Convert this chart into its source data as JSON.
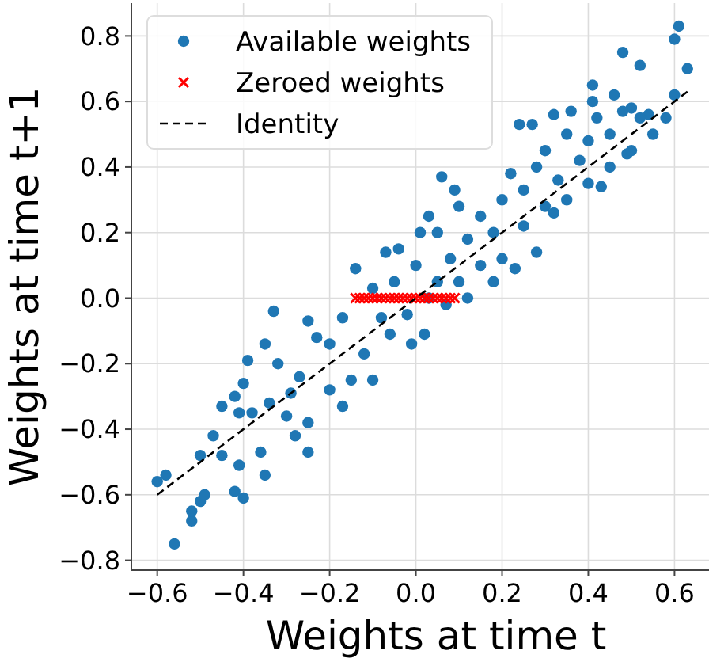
{
  "chart_data": {
    "type": "scatter",
    "xlabel": "Weights at time t",
    "ylabel": "Weights at time t+1",
    "xlim": [
      -0.66,
      0.68
    ],
    "ylim": [
      -0.83,
      0.9
    ],
    "xticks": [
      {
        "value": -0.6,
        "label": "−0.6"
      },
      {
        "value": -0.4,
        "label": "−0.4"
      },
      {
        "value": -0.2,
        "label": "−0.2"
      },
      {
        "value": 0,
        "label": "0.0"
      },
      {
        "value": 0.2,
        "label": "0.2"
      },
      {
        "value": 0.4,
        "label": "0.4"
      },
      {
        "value": 0.6,
        "label": "0.6"
      }
    ],
    "yticks": [
      {
        "value": -0.8,
        "label": "−0.8"
      },
      {
        "value": -0.6,
        "label": "−0.6"
      },
      {
        "value": -0.4,
        "label": "−0.4"
      },
      {
        "value": -0.2,
        "label": "−0.2"
      },
      {
        "value": 0,
        "label": "0.0"
      },
      {
        "value": 0.2,
        "label": "0.2"
      },
      {
        "value": 0.4,
        "label": "0.4"
      },
      {
        "value": 0.6,
        "label": "0.6"
      },
      {
        "value": 0.8,
        "label": "0.8"
      }
    ],
    "grid": true,
    "legend": "top left",
    "series": [
      {
        "name": "Available weights",
        "marker": "circle",
        "color": "#1f77b4",
        "x": [
          0.61,
          0.6,
          0.63,
          0.48,
          0.52,
          0.6,
          0.41,
          0.41,
          0.46,
          0.5,
          0.54,
          0.32,
          0.36,
          0.24,
          0.27,
          0.43,
          0.49,
          0.32,
          0.23,
          0.06,
          0.09,
          0.01,
          0.03,
          -0.07,
          -0.14,
          -0.04,
          -0.33,
          -0.6,
          -0.58,
          -0.56,
          -0.52,
          -0.52,
          -0.5,
          -0.49,
          -0.47,
          -0.5,
          -0.45,
          -0.42,
          -0.4,
          -0.41,
          -0.45,
          -0.42,
          -0.4,
          -0.39,
          -0.41,
          -0.35,
          -0.36,
          -0.35,
          -0.28,
          -0.25,
          -0.25,
          -0.27,
          -0.25,
          -0.32,
          -0.17,
          -0.23,
          -0.2,
          -0.15,
          -0.1,
          -0.12,
          -0.06,
          -0.01,
          0.02,
          -0.08,
          -0.17,
          -0.2,
          -0.3,
          -0.34,
          -0.38,
          -0.29,
          0.05,
          0.08,
          0.1,
          0.12,
          0.15,
          0.15,
          0.18,
          0.2,
          0.2,
          0.22,
          0.25,
          0.25,
          0.28,
          0.3,
          0.3,
          0.33,
          0.35,
          0.38,
          0.4,
          0.4,
          0.42,
          0.45,
          0.48,
          0.5,
          0.52,
          0.55,
          0.58,
          0.1,
          0.05,
          0.0,
          -0.05,
          -0.1,
          0.07,
          0.12,
          0.18,
          0.28,
          0.35,
          0.45,
          0.03,
          -0.02
        ],
        "values": [
          0.83,
          0.79,
          0.7,
          0.75,
          0.71,
          0.62,
          0.65,
          0.6,
          0.62,
          0.58,
          0.56,
          0.56,
          0.57,
          0.53,
          0.53,
          0.34,
          0.44,
          0.26,
          0.09,
          0.37,
          0.33,
          0.2,
          0.25,
          0.14,
          0.09,
          0.15,
          -0.04,
          -0.56,
          -0.54,
          -0.75,
          -0.68,
          -0.65,
          -0.62,
          -0.6,
          -0.42,
          -0.48,
          -0.48,
          -0.59,
          -0.61,
          -0.51,
          -0.33,
          -0.3,
          -0.26,
          -0.19,
          -0.35,
          -0.54,
          -0.47,
          -0.14,
          -0.42,
          -0.47,
          -0.38,
          -0.24,
          -0.07,
          -0.2,
          -0.33,
          -0.12,
          -0.28,
          -0.25,
          -0.25,
          -0.17,
          -0.11,
          -0.14,
          -0.11,
          -0.06,
          -0.06,
          -0.14,
          -0.36,
          -0.32,
          -0.35,
          -0.29,
          0.05,
          0.12,
          0.05,
          0.18,
          0.1,
          0.25,
          0.2,
          0.3,
          0.12,
          0.38,
          0.22,
          0.33,
          0.4,
          0.28,
          0.45,
          0.36,
          0.5,
          0.42,
          0.48,
          0.35,
          0.55,
          0.5,
          0.57,
          0.45,
          0.55,
          0.5,
          0.55,
          0.28,
          0.2,
          0.1,
          0.05,
          0.03,
          -0.02,
          0.0,
          0.05,
          0.14,
          0.3,
          0.4,
          0.0,
          -0.05
        ]
      },
      {
        "name": "Zeroed weights",
        "marker": "cross",
        "color": "#ff0000",
        "x": [
          -0.14,
          -0.13,
          -0.12,
          -0.11,
          -0.1,
          -0.09,
          -0.08,
          -0.07,
          -0.06,
          -0.05,
          -0.04,
          -0.03,
          -0.02,
          -0.01,
          0.0,
          0.01,
          0.02,
          0.03,
          0.04,
          0.05,
          0.06,
          0.07,
          0.08,
          0.09
        ],
        "values": [
          0,
          0,
          0,
          0,
          0,
          0,
          0,
          0,
          0,
          0,
          0,
          0,
          0,
          0,
          0,
          0,
          0,
          0,
          0,
          0,
          0,
          0,
          0,
          0
        ]
      },
      {
        "name": "Identity",
        "type": "line",
        "marker": "none",
        "line_style": "dashed",
        "color": "#000000",
        "x": [
          -0.6,
          0.63
        ],
        "values": [
          -0.6,
          0.63
        ]
      }
    ]
  }
}
